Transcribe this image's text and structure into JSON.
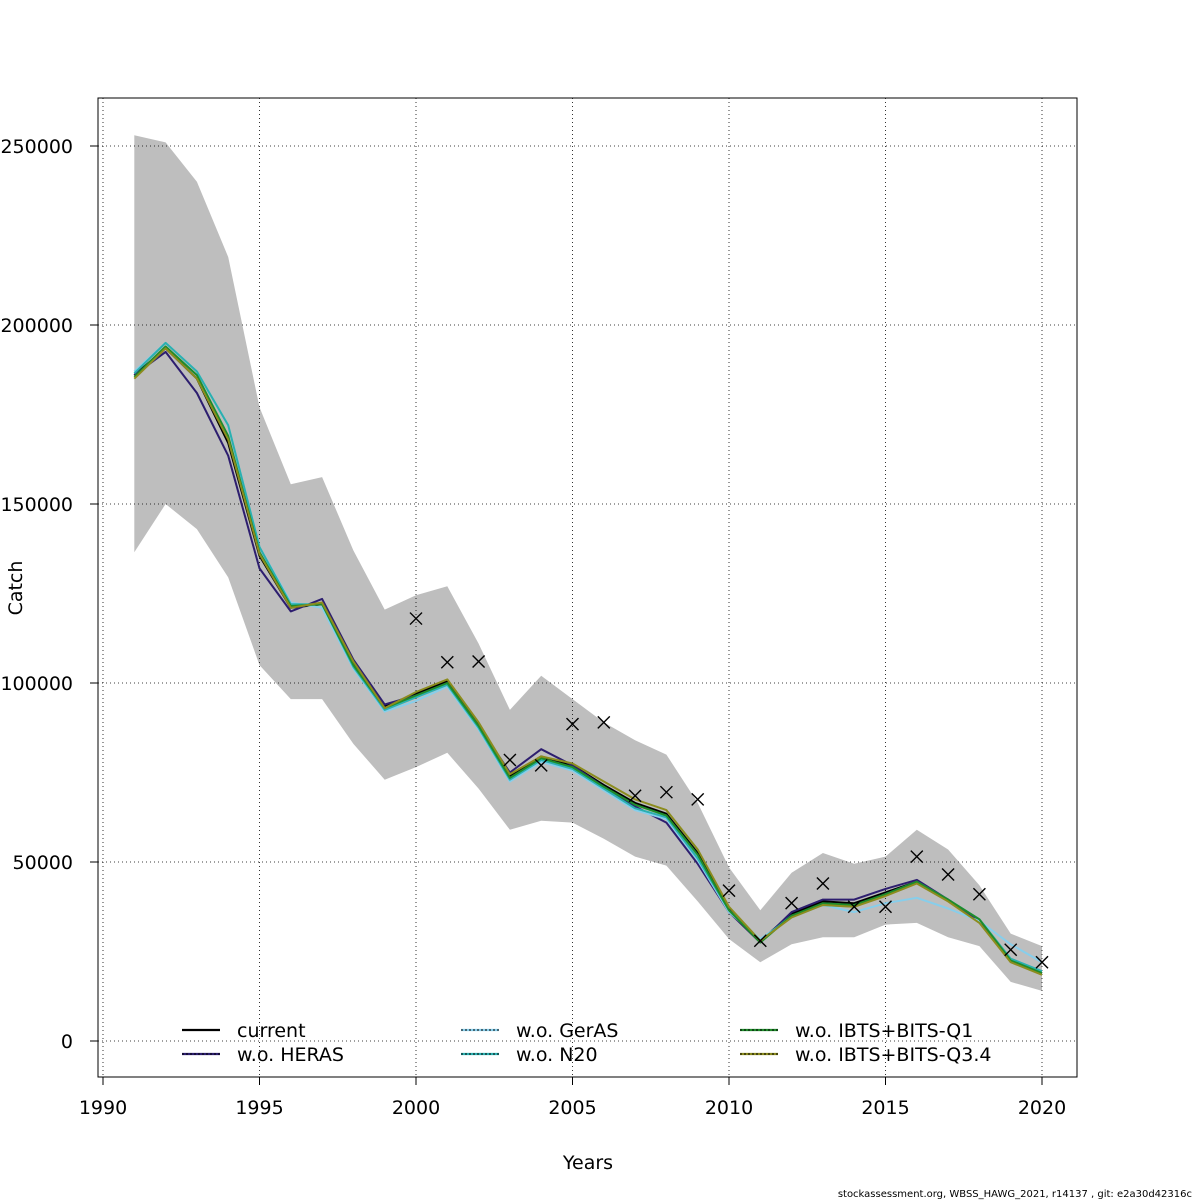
{
  "chart_data": {
    "type": "line",
    "xlabel": "Years",
    "ylabel": "Catch",
    "xlim": [
      1990,
      2020
    ],
    "ylim": [
      0,
      260000
    ],
    "x_ticks": [
      1990,
      1995,
      2000,
      2005,
      2010,
      2015,
      2020
    ],
    "y_ticks": [
      0,
      50000,
      100000,
      150000,
      200000,
      250000
    ],
    "grid": true,
    "legend_placement": "bottom",
    "years": [
      1991,
      1992,
      1993,
      1994,
      1995,
      1996,
      1997,
      1998,
      1999,
      2000,
      2001,
      2002,
      2003,
      2004,
      2005,
      2006,
      2007,
      2008,
      2009,
      2010,
      2011,
      2012,
      2013,
      2014,
      2015,
      2016,
      2017,
      2018,
      2019,
      2020
    ],
    "confidence_band": {
      "upper": [
        253000,
        251000,
        240000,
        219000,
        177000,
        155500,
        157500,
        137000,
        120500,
        124500,
        127000,
        111000,
        92500,
        102000,
        95500,
        89000,
        84000,
        80000,
        66500,
        48500,
        36500,
        47000,
        52500,
        49500,
        51500,
        59000,
        53500,
        43500,
        30000,
        26500
      ],
      "lower": [
        136500,
        150000,
        143000,
        129500,
        105000,
        95500,
        95500,
        83000,
        73000,
        76500,
        80500,
        70500,
        59000,
        61500,
        61000,
        56500,
        51500,
        49000,
        39000,
        28500,
        22000,
        27000,
        29000,
        29000,
        32500,
        33000,
        29000,
        26500,
        16500,
        14000
      ]
    },
    "observations": {
      "x": [
        2000,
        2001,
        2002,
        2003,
        2004,
        2005,
        2006,
        2007,
        2008,
        2009,
        2010,
        2011,
        2012,
        2013,
        2014,
        2015,
        2016,
        2017,
        2018,
        2019,
        2020
      ],
      "y": [
        118000,
        105800,
        106000,
        78500,
        77000,
        88500,
        89000,
        68500,
        69500,
        67500,
        42000,
        28000,
        38500,
        44000,
        37500,
        37500,
        51500,
        46500,
        41000,
        25500,
        22000
      ]
    },
    "series": [
      {
        "name": "current",
        "color": "#000000",
        "dash": "",
        "values": [
          186000,
          193500,
          185000,
          167000,
          135500,
          121000,
          122000,
          105500,
          93500,
          97000,
          100500,
          88500,
          74000,
          79500,
          77000,
          71500,
          66500,
          63500,
          52500,
          37000,
          28000,
          35500,
          39000,
          38500,
          41500,
          44500,
          39500,
          33500,
          22500,
          19000
        ]
      },
      {
        "name": "w.o. HERAS",
        "color": "#2d1e6f",
        "dash": "",
        "values": [
          186000,
          192500,
          181000,
          163500,
          132000,
          120000,
          123500,
          106500,
          94000,
          96500,
          100000,
          88000,
          75000,
          81500,
          77000,
          71000,
          65500,
          61000,
          49500,
          36000,
          27500,
          36000,
          39500,
          39500,
          42500,
          45000,
          39500,
          33500,
          22500,
          19000
        ]
      },
      {
        "name": "w.o. GerAS",
        "color": "#87ceeb",
        "dash": "",
        "values": [
          187000,
          195000,
          187000,
          172000,
          138000,
          122500,
          121000,
          104000,
          92000,
          95000,
          99000,
          87000,
          72500,
          78000,
          75500,
          70000,
          64500,
          62000,
          50500,
          36000,
          28500,
          34500,
          38000,
          36000,
          38500,
          40000,
          37000,
          33500,
          27000,
          22000
        ]
      },
      {
        "name": "w.o. N20",
        "color": "#2ab0b0",
        "dash": "",
        "values": [
          186500,
          195000,
          187000,
          172000,
          138000,
          122000,
          122000,
          104500,
          92500,
          96000,
          99500,
          87500,
          73000,
          78500,
          76000,
          70500,
          65000,
          62500,
          51000,
          36500,
          28000,
          35000,
          38000,
          37500,
          41000,
          44500,
          39500,
          34000,
          23000,
          19500
        ]
      },
      {
        "name": "w.o. IBTS+BITS-Q1",
        "color": "#1e8c2a",
        "dash": "",
        "values": [
          185500,
          194000,
          186000,
          169000,
          136500,
          121500,
          122000,
          105000,
          93000,
          96500,
          100000,
          88000,
          73500,
          79000,
          76500,
          71000,
          66000,
          63000,
          52000,
          36500,
          27500,
          35000,
          38500,
          38000,
          41000,
          44500,
          39500,
          34000,
          22500,
          19000
        ]
      },
      {
        "name": "w.o. IBTS+BITS-Q3.4",
        "color": "#8c8c1e",
        "dash": "",
        "values": [
          185000,
          193500,
          185000,
          168000,
          136000,
          121000,
          122500,
          106000,
          93000,
          97500,
          101000,
          89000,
          74500,
          79500,
          77500,
          72500,
          67500,
          64500,
          53500,
          37500,
          28000,
          34500,
          38000,
          37500,
          40500,
          44000,
          39000,
          33000,
          22000,
          18500
        ]
      }
    ],
    "legend": [
      {
        "label": "current",
        "color": "#000000",
        "style": "solid"
      },
      {
        "label": "w.o. HERAS",
        "color": "#2d1e6f",
        "style": "dashed"
      },
      {
        "label": "w.o. GerAS",
        "color": "#87ceeb",
        "style": "dashed"
      },
      {
        "label": "w.o. N20",
        "color": "#2ab0b0",
        "style": "dashed"
      },
      {
        "label": "w.o. IBTS+BITS-Q1",
        "color": "#1e8c2a",
        "style": "dashed"
      },
      {
        "label": "w.o. IBTS+BITS-Q3.4",
        "color": "#8c8c1e",
        "style": "dashed"
      }
    ]
  },
  "footer": "stockassessment.org, WBSS_HAWG_2021, r14137 , git: e2a30d42316c"
}
